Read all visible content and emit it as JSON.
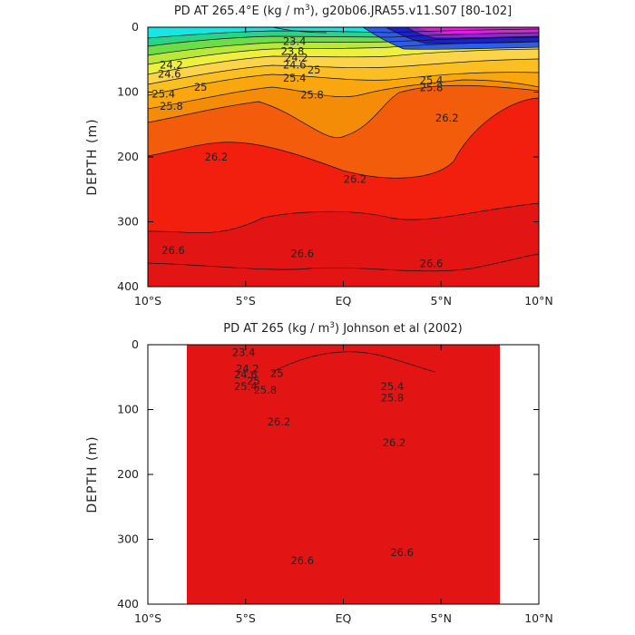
{
  "chart_data": [
    {
      "type": "contour",
      "title": "PD AT 265.4°E (kg / m",
      "title_sup": "3",
      "title_tail": "), g20b06.JRA55.v11.S07 [80-102]",
      "ylabel": "DEPTH (m)",
      "x_ticks": [
        "10°S",
        "5°S",
        "EQ",
        "5°N",
        "10°N"
      ],
      "x_values": [
        -10,
        -5,
        0,
        5,
        10
      ],
      "y_ticks": [
        "0",
        "100",
        "200",
        "300",
        "400"
      ],
      "y_values": [
        0,
        100,
        200,
        300,
        400
      ],
      "xlim": [
        -10,
        10
      ],
      "ylim": [
        0,
        400
      ],
      "data_extent": [
        -10,
        10
      ],
      "contour_labels": [
        {
          "text": "23.4",
          "x": -2.5,
          "y": 22
        },
        {
          "text": "23.8",
          "x": -2.6,
          "y": 37
        },
        {
          "text": "24.2",
          "x": -8.8,
          "y": 58
        },
        {
          "text": "24.2",
          "x": -2.4,
          "y": 47
        },
        {
          "text": "24.6",
          "x": -8.9,
          "y": 72
        },
        {
          "text": "24.6",
          "x": -2.5,
          "y": 58
        },
        {
          "text": "25",
          "x": -1.5,
          "y": 66
        },
        {
          "text": "25",
          "x": -7.3,
          "y": 92
        },
        {
          "text": "25.4",
          "x": -9.2,
          "y": 103
        },
        {
          "text": "25.4",
          "x": -2.5,
          "y": 78
        },
        {
          "text": "25.8",
          "x": -8.8,
          "y": 122
        },
        {
          "text": "25.8",
          "x": -1.6,
          "y": 104
        },
        {
          "text": "25.8",
          "x": 4.5,
          "y": 93
        },
        {
          "text": "25.4",
          "x": 4.5,
          "y": 82
        },
        {
          "text": "26.2",
          "x": 5.3,
          "y": 140
        },
        {
          "text": "26.2",
          "x": -6.5,
          "y": 200
        },
        {
          "text": "26.2",
          "x": 0.6,
          "y": 234
        },
        {
          "text": "26.6",
          "x": -8.7,
          "y": 344
        },
        {
          "text": "26.6",
          "x": -2.1,
          "y": 349
        },
        {
          "text": "26.6",
          "x": 4.5,
          "y": 364
        }
      ]
    },
    {
      "type": "contour",
      "title": "PD AT 265 (kg / m",
      "title_sup": "3",
      "title_tail": ") Johnson et al (2002)",
      "ylabel": "DEPTH (m)",
      "x_ticks": [
        "10°S",
        "5°S",
        "EQ",
        "5°N",
        "10°N"
      ],
      "x_values": [
        -10,
        -5,
        0,
        5,
        10
      ],
      "y_ticks": [
        "0",
        "100",
        "200",
        "300",
        "400"
      ],
      "y_values": [
        0,
        100,
        200,
        300,
        400
      ],
      "xlim": [
        -10,
        10
      ],
      "ylim": [
        0,
        400
      ],
      "data_extent": [
        -8,
        8
      ],
      "contour_labels": [
        {
          "text": "23.4",
          "x": -5.1,
          "y": 12
        },
        {
          "text": "24.2",
          "x": -4.9,
          "y": 37
        },
        {
          "text": "24.6",
          "x": -5.0,
          "y": 46
        },
        {
          "text": "25",
          "x": -4.6,
          "y": 56
        },
        {
          "text": "25",
          "x": -3.4,
          "y": 44
        },
        {
          "text": "25.4",
          "x": -5.0,
          "y": 64
        },
        {
          "text": "25.8",
          "x": -4.0,
          "y": 70
        },
        {
          "text": "25.4",
          "x": 2.5,
          "y": 64
        },
        {
          "text": "25.8",
          "x": 2.5,
          "y": 82
        },
        {
          "text": "26.2",
          "x": -3.3,
          "y": 119
        },
        {
          "text": "26.2",
          "x": 2.6,
          "y": 151
        },
        {
          "text": "26.6",
          "x": -2.1,
          "y": 333
        },
        {
          "text": "26.6",
          "x": 3.0,
          "y": 320
        }
      ]
    }
  ]
}
